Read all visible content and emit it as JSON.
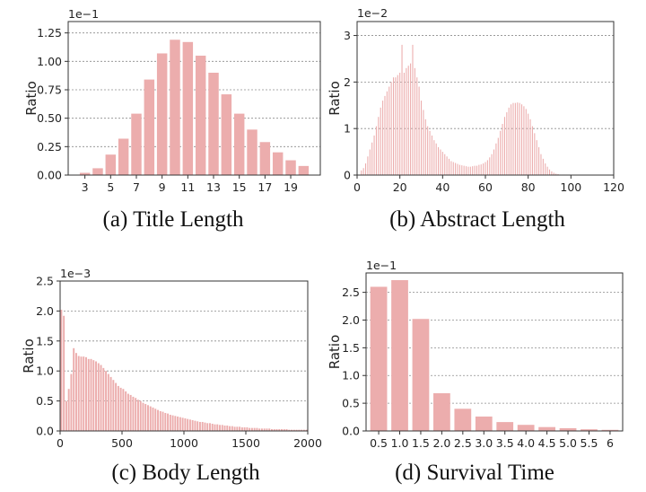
{
  "chart_data": [
    {
      "type": "bar",
      "caption": "(a)  Title Length",
      "ylabel": "Ratio",
      "multiplier": "1e−1",
      "ylim": [
        0,
        1.35
      ],
      "yticks": [
        0.0,
        0.25,
        0.5,
        0.75,
        1.0,
        1.25
      ],
      "ytick_labels": [
        "0.00",
        "0.25",
        "0.50",
        "0.75",
        "1.00",
        "1.25"
      ],
      "xlim": [
        1.7,
        21.3
      ],
      "xticks": [
        3,
        5,
        7,
        9,
        11,
        13,
        15,
        17,
        19
      ],
      "xtick_labels": [
        "3",
        "5",
        "7",
        "9",
        "11",
        "13",
        "15",
        "17",
        "19"
      ],
      "bar_width": 0.8,
      "x": [
        3,
        4,
        5,
        6,
        7,
        8,
        9,
        10,
        11,
        12,
        13,
        14,
        15,
        16,
        17,
        18,
        19,
        20
      ],
      "values": [
        0.02,
        0.06,
        0.18,
        0.32,
        0.54,
        0.84,
        1.07,
        1.19,
        1.17,
        1.05,
        0.9,
        0.71,
        0.54,
        0.4,
        0.29,
        0.2,
        0.13,
        0.08
      ],
      "grid": true
    },
    {
      "type": "bar",
      "caption": "(b)  Abstract Length",
      "ylabel": "Ratio",
      "multiplier": "1e−2",
      "ylim": [
        0,
        3.3
      ],
      "yticks": [
        0,
        1,
        2,
        3
      ],
      "ytick_labels": [
        "0",
        "1",
        "2",
        "3"
      ],
      "xlim": [
        0,
        120
      ],
      "xticks": [
        0,
        20,
        40,
        60,
        80,
        100,
        120
      ],
      "xtick_labels": [
        "0",
        "20",
        "40",
        "60",
        "80",
        "100",
        "120"
      ],
      "bar_width": 0.45,
      "x": [
        2,
        3,
        4,
        5,
        6,
        7,
        8,
        9,
        10,
        11,
        12,
        13,
        14,
        15,
        16,
        17,
        18,
        19,
        20,
        21,
        22,
        23,
        24,
        25,
        26,
        27,
        28,
        29,
        30,
        31,
        32,
        33,
        34,
        35,
        36,
        37,
        38,
        39,
        40,
        41,
        42,
        43,
        44,
        45,
        46,
        47,
        48,
        49,
        50,
        51,
        52,
        53,
        54,
        55,
        56,
        57,
        58,
        59,
        60,
        61,
        62,
        63,
        64,
        65,
        66,
        67,
        68,
        69,
        70,
        71,
        72,
        73,
        74,
        75,
        76,
        77,
        78,
        79,
        80,
        81,
        82,
        83,
        84,
        85,
        86,
        87,
        88,
        89,
        90,
        91,
        92,
        93,
        94,
        95,
        96,
        97,
        98,
        99,
        100,
        101,
        102,
        103,
        104,
        105,
        106,
        107,
        108,
        109,
        110
      ],
      "values": [
        0.1,
        0.15,
        0.25,
        0.4,
        0.55,
        0.7,
        0.85,
        1.05,
        1.25,
        1.45,
        1.6,
        1.7,
        1.8,
        1.9,
        2.0,
        2.1,
        2.1,
        2.15,
        2.2,
        2.8,
        2.2,
        2.3,
        2.35,
        2.4,
        2.8,
        2.3,
        2.1,
        1.9,
        1.6,
        1.4,
        1.2,
        1.05,
        0.95,
        0.85,
        0.75,
        0.68,
        0.6,
        0.55,
        0.5,
        0.45,
        0.4,
        0.35,
        0.3,
        0.28,
        0.26,
        0.24,
        0.22,
        0.21,
        0.2,
        0.19,
        0.18,
        0.18,
        0.19,
        0.2,
        0.2,
        0.22,
        0.23,
        0.25,
        0.28,
        0.32,
        0.38,
        0.45,
        0.55,
        0.68,
        0.8,
        0.95,
        1.1,
        1.25,
        1.35,
        1.45,
        1.52,
        1.55,
        1.55,
        1.56,
        1.55,
        1.52,
        1.48,
        1.42,
        1.32,
        1.2,
        1.05,
        0.9,
        0.75,
        0.6,
        0.45,
        0.35,
        0.25,
        0.18,
        0.12,
        0.08,
        0.05,
        0.03,
        0.02,
        0.01,
        0.01,
        0.01,
        0.01,
        0.005,
        0.004,
        0.003,
        0.002,
        0.002,
        0.001,
        0.001,
        0.001,
        0.001,
        0.001,
        0.001,
        0.001
      ],
      "grid": true
    },
    {
      "type": "bar",
      "caption": "(c)  Body Length",
      "ylabel": "Ratio",
      "multiplier": "1e−3",
      "ylim": [
        0,
        2.5
      ],
      "yticks": [
        0.0,
        0.5,
        1.0,
        1.5,
        2.0,
        2.5
      ],
      "ytick_labels": [
        "0.0",
        "0.5",
        "1.0",
        "1.5",
        "2.0",
        "2.5"
      ],
      "xlim": [
        0,
        2000
      ],
      "xticks": [
        0,
        500,
        1000,
        1500,
        2000
      ],
      "xtick_labels": [
        "0",
        "500",
        "1000",
        "1500",
        "2000"
      ],
      "bar_width": 14,
      "x": [
        10,
        30,
        50,
        70,
        90,
        110,
        130,
        150,
        170,
        190,
        210,
        230,
        250,
        270,
        290,
        310,
        330,
        350,
        370,
        390,
        410,
        430,
        450,
        470,
        490,
        510,
        530,
        550,
        570,
        590,
        610,
        630,
        650,
        670,
        690,
        710,
        730,
        750,
        770,
        790,
        810,
        830,
        850,
        870,
        890,
        910,
        930,
        950,
        970,
        990,
        1010,
        1030,
        1050,
        1070,
        1090,
        1110,
        1130,
        1150,
        1170,
        1190,
        1210,
        1230,
        1250,
        1270,
        1290,
        1310,
        1330,
        1350,
        1370,
        1390,
        1410,
        1430,
        1450,
        1470,
        1490,
        1510,
        1530,
        1550,
        1570,
        1590,
        1610,
        1630,
        1650,
        1670,
        1690,
        1710,
        1730,
        1750,
        1770,
        1790,
        1810,
        1830,
        1850,
        1870,
        1890,
        1910,
        1930,
        1950,
        1970,
        1990
      ],
      "values": [
        2.02,
        1.92,
        0.5,
        0.7,
        0.95,
        1.38,
        1.3,
        1.25,
        1.24,
        1.24,
        1.23,
        1.2,
        1.2,
        1.18,
        1.16,
        1.13,
        1.1,
        1.05,
        1.0,
        0.95,
        0.9,
        0.85,
        0.8,
        0.75,
        0.72,
        0.7,
        0.66,
        0.62,
        0.6,
        0.57,
        0.55,
        0.52,
        0.5,
        0.47,
        0.45,
        0.43,
        0.41,
        0.39,
        0.37,
        0.35,
        0.33,
        0.32,
        0.3,
        0.29,
        0.27,
        0.26,
        0.25,
        0.24,
        0.23,
        0.22,
        0.21,
        0.2,
        0.19,
        0.18,
        0.17,
        0.16,
        0.15,
        0.15,
        0.14,
        0.13,
        0.13,
        0.12,
        0.11,
        0.11,
        0.1,
        0.1,
        0.09,
        0.09,
        0.08,
        0.08,
        0.07,
        0.07,
        0.07,
        0.06,
        0.06,
        0.06,
        0.05,
        0.05,
        0.05,
        0.05,
        0.04,
        0.04,
        0.04,
        0.04,
        0.04,
        0.03,
        0.03,
        0.03,
        0.03,
        0.03,
        0.03,
        0.03,
        0.02,
        0.02,
        0.02,
        0.02,
        0.02,
        0.02,
        0.02,
        0.02
      ],
      "grid": true
    },
    {
      "type": "bar",
      "caption": "(d)  Survival Time",
      "ylabel": "Ratio",
      "multiplier": "1e−1",
      "ylim": [
        0,
        2.85
      ],
      "yticks": [
        0.0,
        0.5,
        1.0,
        1.5,
        2.0,
        2.5
      ],
      "ytick_labels": [
        "0.0",
        "0.5",
        "1.0",
        "1.5",
        "2.0",
        "2.5"
      ],
      "xlim": [
        0.2,
        6.3
      ],
      "xticks": [
        0.5,
        1.0,
        1.5,
        2.0,
        2.5,
        3.0,
        3.5,
        4.0,
        4.5,
        5.0,
        5.5,
        6
      ],
      "xtick_labels": [
        "0.5",
        "1.0",
        "1.5",
        "2.0",
        "2.5",
        "3.0",
        "3.5",
        "4.0",
        "4.5",
        "5.0",
        "5.5",
        "6"
      ],
      "bar_width": 0.4,
      "x": [
        0.5,
        1.0,
        1.5,
        2.0,
        2.5,
        3.0,
        3.5,
        4.0,
        4.5,
        5.0,
        5.5,
        6.0
      ],
      "values": [
        2.6,
        2.72,
        2.02,
        0.68,
        0.4,
        0.26,
        0.16,
        0.11,
        0.07,
        0.05,
        0.03,
        0.02
      ],
      "grid": true
    }
  ]
}
